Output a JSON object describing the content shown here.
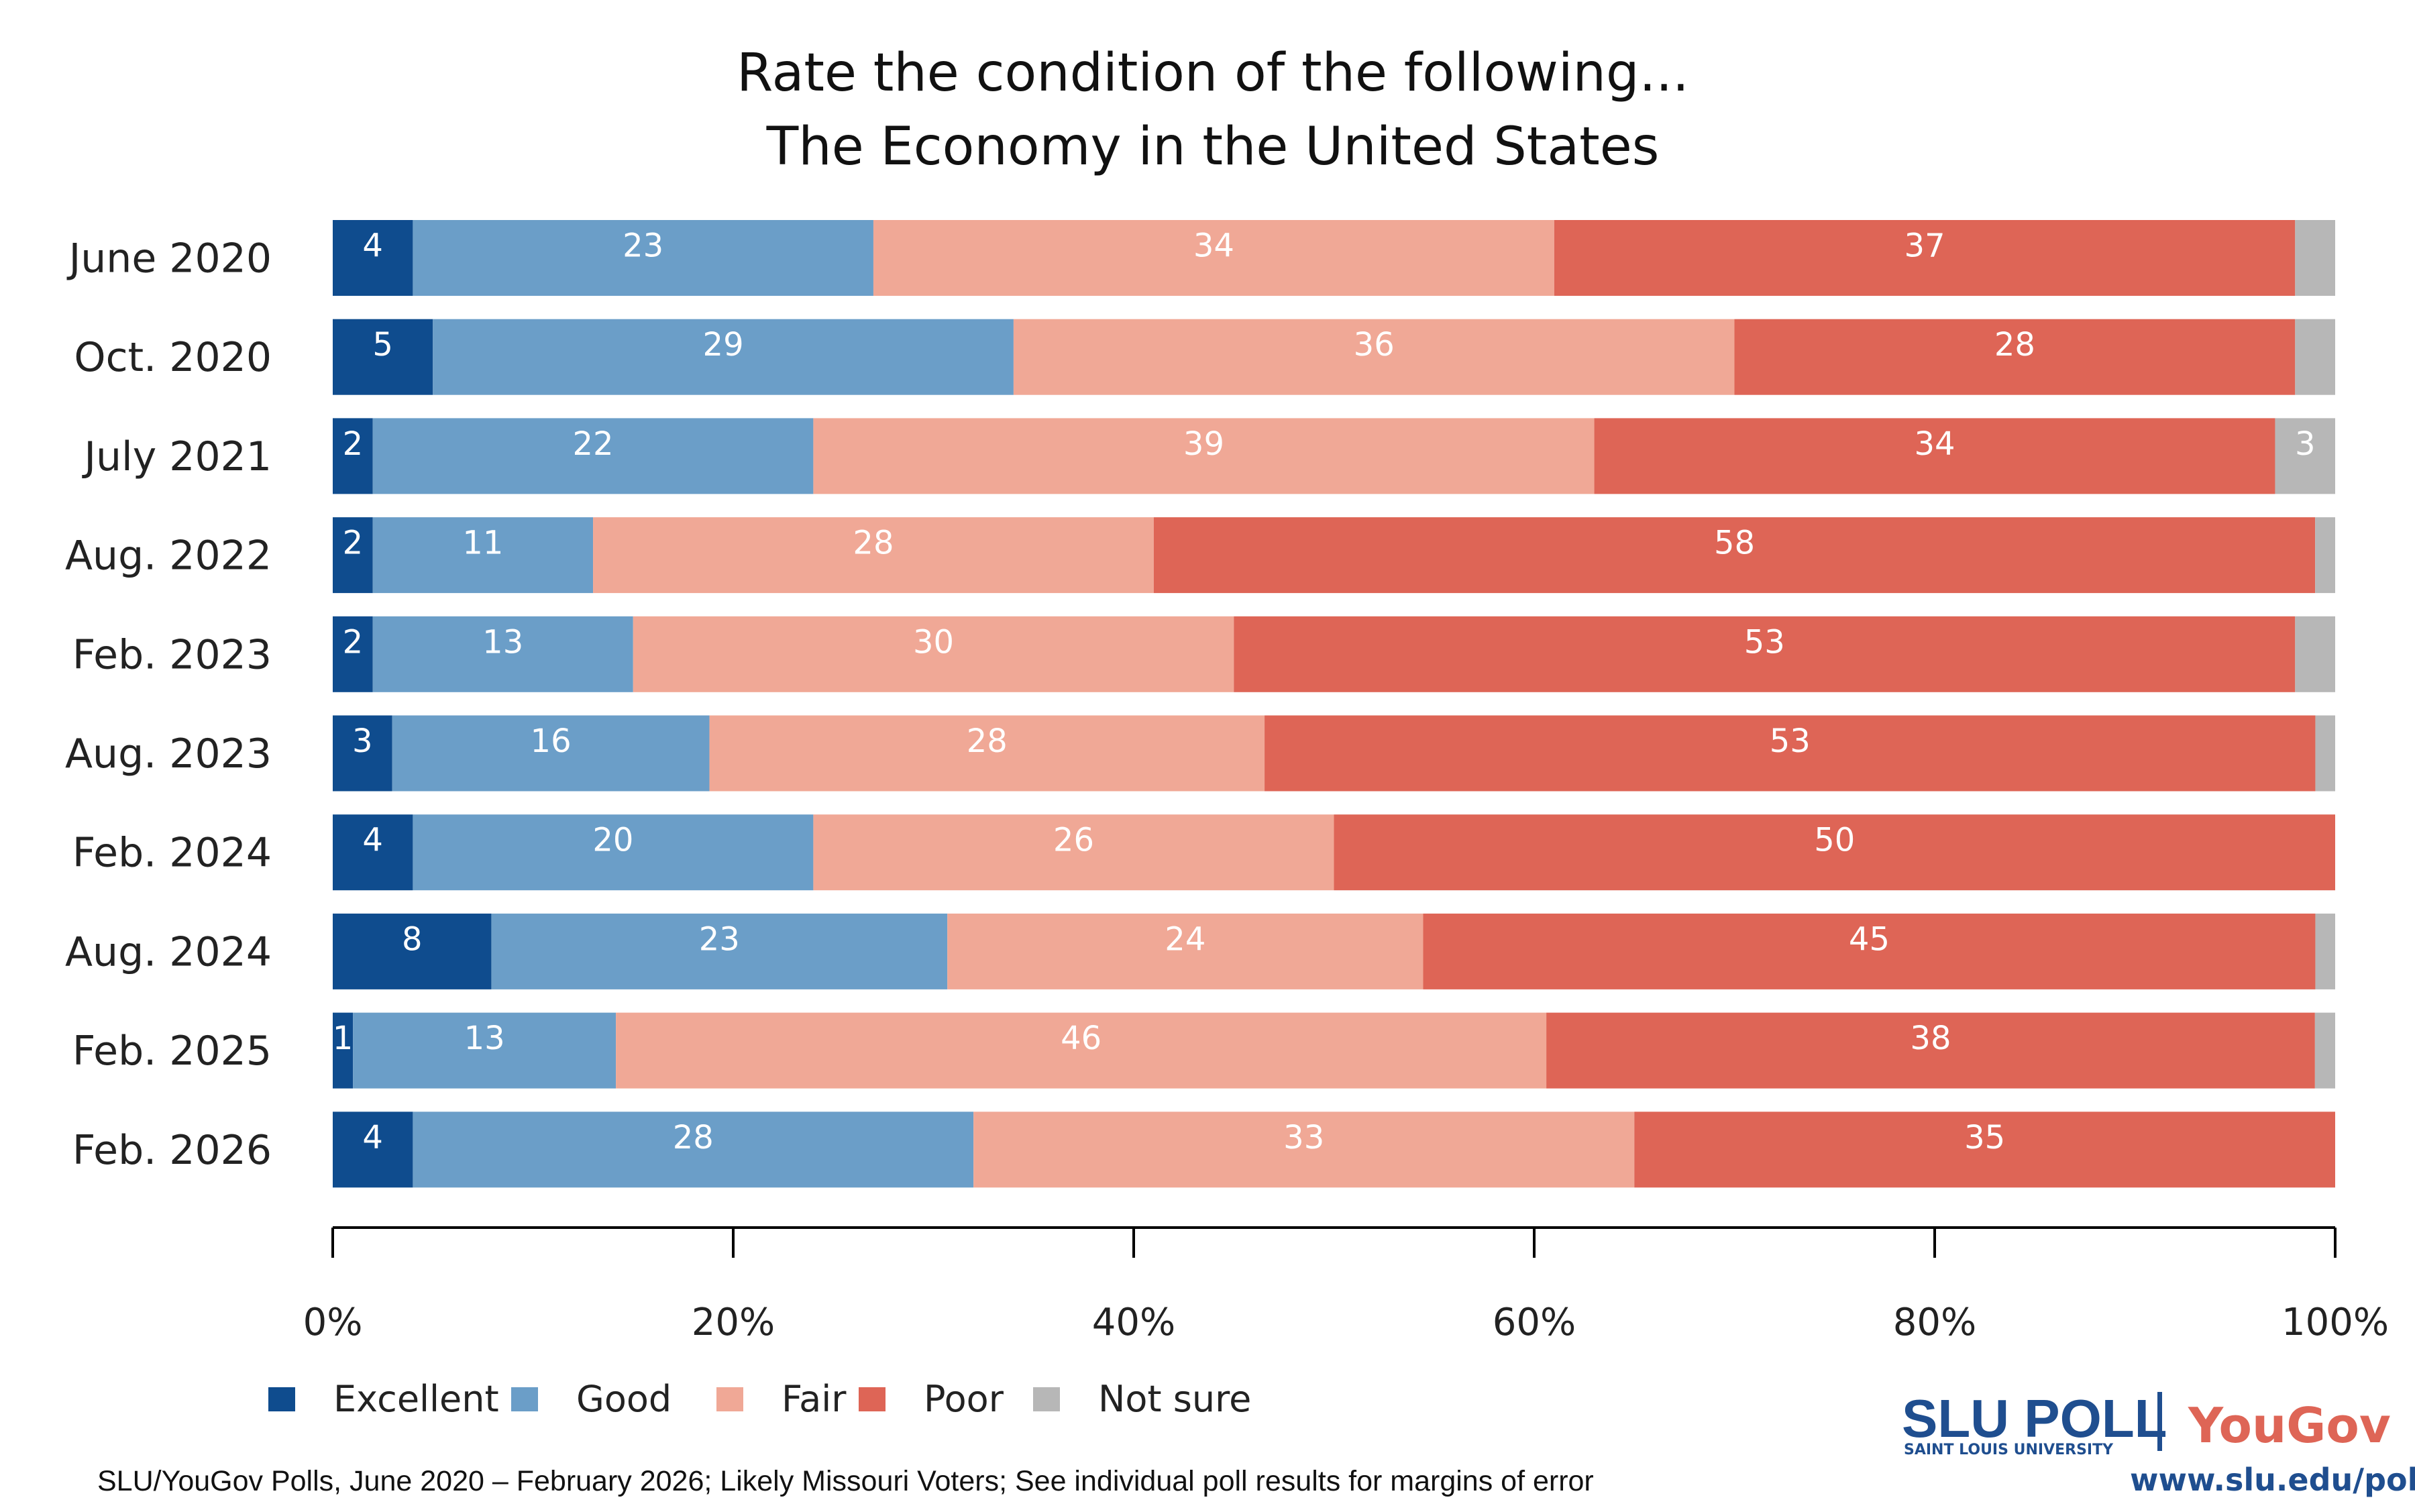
{
  "chart_data": {
    "type": "bar",
    "orientation": "horizontal-stacked",
    "title": [
      "Rate the condition of the following...",
      "The Economy in the United States"
    ],
    "categories": [
      "June 2020",
      "Oct. 2020",
      "July 2021",
      "Aug. 2022",
      "Feb. 2023",
      "Aug. 2023",
      "Feb. 2024",
      "Aug. 2024",
      "Feb. 2025",
      "Feb. 2026"
    ],
    "series": [
      {
        "name": "Excellent",
        "color": "#0F4C8E",
        "values": [
          4,
          5,
          2,
          2,
          2,
          3,
          4,
          8,
          1,
          4
        ]
      },
      {
        "name": "Good",
        "color": "#6B9EC8",
        "values": [
          23,
          29,
          22,
          11,
          13,
          16,
          20,
          23,
          13,
          28
        ]
      },
      {
        "name": "Fair",
        "color": "#F0A896",
        "values": [
          34,
          36,
          39,
          28,
          30,
          28,
          26,
          24,
          46,
          33
        ]
      },
      {
        "name": "Poor",
        "color": "#DE6556",
        "values": [
          37,
          28,
          34,
          58,
          53,
          53,
          50,
          45,
          38,
          35
        ]
      },
      {
        "name": "Not sure",
        "color": "#B7B7B7",
        "values": [
          2,
          2,
          3,
          1,
          2,
          1,
          0,
          1,
          1,
          0
        ]
      }
    ],
    "label_hidden_for": "Not sure values below 3",
    "xlim": [
      0,
      100
    ],
    "xticks": [
      "0%",
      "20%",
      "40%",
      "60%",
      "80%",
      "100%"
    ],
    "grid": false,
    "legend_placement": "bottom-left"
  },
  "footnote": "SLU/YouGov Polls, June 2020 – February 2026; Likely Missouri Voters; See individual poll results for margins of error",
  "logo": {
    "slu": "SLU POLL",
    "slu_sub": "SAINT LOUIS UNIVERSITY",
    "yougov": "YouGov",
    "url": "www.slu.edu/poll"
  }
}
